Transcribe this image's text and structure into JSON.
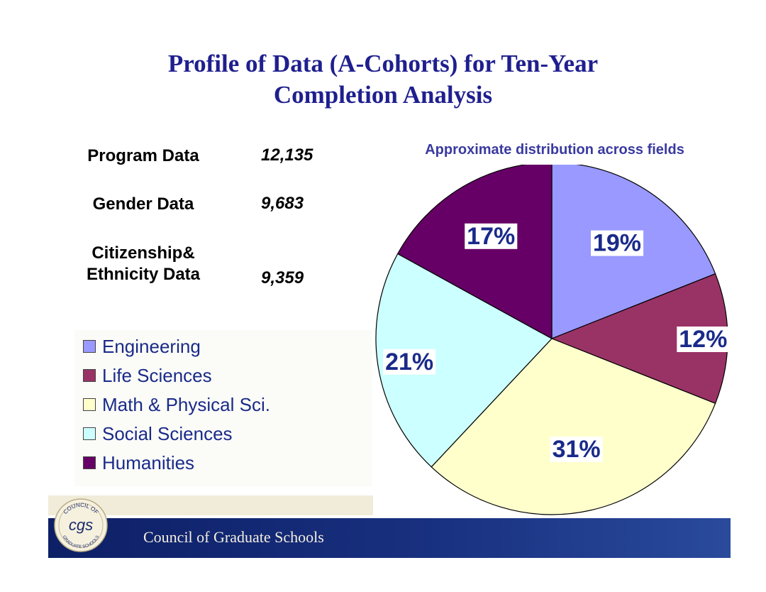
{
  "title": {
    "line1": "Profile of Data (A-Cohorts) for Ten-Year",
    "line2": "Completion Analysis"
  },
  "stats": [
    {
      "label": "Program Data",
      "value": "12,135"
    },
    {
      "label": "Gender Data",
      "value": "9,683"
    },
    {
      "label_line1": "Citizenship&",
      "label_line2": "Ethnicity Data",
      "value": "9,359"
    }
  ],
  "legend": [
    {
      "label": "Engineering",
      "color": "#9999ff"
    },
    {
      "label": "Life Sciences",
      "color": "#993366"
    },
    {
      "label": "Math & Physical Sci.",
      "color": "#ffffcc"
    },
    {
      "label": "Social Sciences",
      "color": "#ccffff"
    },
    {
      "label": "Humanities",
      "color": "#660066"
    }
  ],
  "chart_data": {
    "type": "pie",
    "title": "Approximate distribution across fields",
    "categories": [
      "Engineering",
      "Life Sciences",
      "Math & Physical Sci.",
      "Social Sciences",
      "Humanities"
    ],
    "values": [
      19,
      12,
      31,
      21,
      17
    ],
    "value_labels": [
      "19%",
      "12%",
      "31%",
      "21%",
      "17%"
    ],
    "colors": [
      "#9999ff",
      "#993366",
      "#ffffcc",
      "#ccffff",
      "#660066"
    ],
    "start_angle_deg": 0,
    "direction": "clockwise"
  },
  "footer": {
    "org_name": "Council of Graduate Schools",
    "seal_text_top": "COUNCIL OF",
    "seal_text_bottom": "GRADUATE SCHOOLS",
    "seal_monogram": "cgs",
    "band_color": "#18307f"
  }
}
